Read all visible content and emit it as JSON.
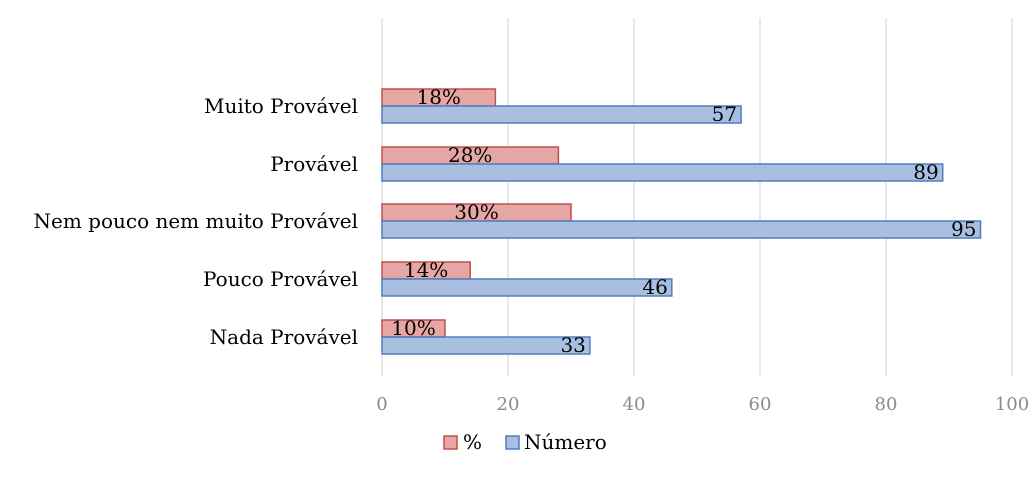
{
  "chart_data": {
    "type": "bar",
    "orientation": "horizontal",
    "categories": [
      "Muito Provável",
      "Provável",
      "Nem pouco nem muito Provável",
      "Pouco Provável",
      "Nada Provável"
    ],
    "series": [
      {
        "name": "%",
        "values": [
          18,
          28,
          30,
          14,
          10
        ],
        "labels": [
          "18%",
          "28%",
          "30%",
          "14%",
          "10%"
        ],
        "color": "#e6a6a4",
        "stroke": "#c0504d"
      },
      {
        "name": "Número",
        "values": [
          57,
          89,
          95,
          46,
          33
        ],
        "labels": [
          "57",
          "89",
          "95",
          "46",
          "33"
        ],
        "color": "#a9bfe0",
        "stroke": "#4f7ec0"
      }
    ],
    "xlim": [
      0,
      100
    ],
    "xticks": [
      "0",
      "20",
      "40",
      "60",
      "80",
      "100"
    ],
    "xtick_values": [
      0,
      20,
      40,
      60,
      80,
      100
    ],
    "grid": "vertical",
    "legend_position": "bottom",
    "title": "",
    "xlabel": "",
    "ylabel": ""
  }
}
